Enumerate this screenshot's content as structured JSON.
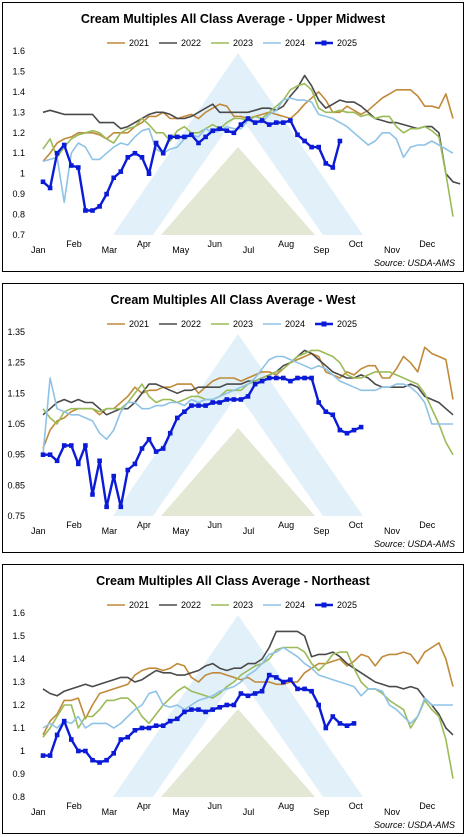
{
  "chart_data": [
    {
      "type": "line",
      "title": "Cream Multiples All Class Average - Upper Midwest",
      "source": "Source: USDA-AMS",
      "xlabels": [
        "Jan",
        "Feb",
        "Mar",
        "Apr",
        "May",
        "Jun",
        "Jul",
        "Aug",
        "Sep",
        "Oct",
        "Nov",
        "Dec"
      ],
      "ylim": [
        0.7,
        1.6
      ],
      "yticks": [
        "0.7",
        "0.8",
        "0.9",
        "1",
        "1.1",
        "1.2",
        "1.3",
        "1.4",
        "1.5",
        "1.6"
      ],
      "legend_position": "top",
      "series": [
        {
          "name": "2021",
          "color": "#c08a3a",
          "width": 1.6,
          "marker": false,
          "values": [
            1.06,
            1.1,
            1.15,
            1.17,
            1.18,
            1.2,
            1.2,
            1.2,
            1.19,
            1.17,
            1.2,
            1.2,
            1.2,
            1.23,
            1.25,
            1.28,
            1.28,
            1.3,
            1.27,
            1.27,
            1.28,
            1.29,
            1.27,
            1.3,
            1.32,
            1.34,
            1.33,
            1.28,
            1.28,
            1.27,
            1.28,
            1.29,
            1.3,
            1.29,
            1.28,
            1.27,
            1.3,
            1.34,
            1.37,
            1.4,
            1.36,
            1.3,
            1.3,
            1.33,
            1.31,
            1.29,
            1.31,
            1.34,
            1.37,
            1.39,
            1.41,
            1.41,
            1.41,
            1.38,
            1.33,
            1.33,
            1.32,
            1.39,
            1.27
          ]
        },
        {
          "name": "2022",
          "color": "#4a4a4a",
          "width": 1.6,
          "marker": false,
          "values": [
            1.3,
            1.31,
            1.3,
            1.29,
            1.29,
            1.29,
            1.29,
            1.29,
            1.25,
            1.25,
            1.25,
            1.22,
            1.23,
            1.25,
            1.27,
            1.29,
            1.3,
            1.3,
            1.29,
            1.27,
            1.27,
            1.28,
            1.3,
            1.32,
            1.34,
            1.3,
            1.3,
            1.3,
            1.3,
            1.3,
            1.31,
            1.32,
            1.32,
            1.31,
            1.33,
            1.38,
            1.42,
            1.48,
            1.43,
            1.36,
            1.32,
            1.34,
            1.36,
            1.35,
            1.35,
            1.33,
            1.3,
            1.27,
            1.26,
            1.25,
            1.25,
            1.24,
            1.23,
            1.22,
            1.23,
            1.23,
            1.2,
            1.0,
            0.96,
            0.95
          ]
        },
        {
          "name": "2023",
          "color": "#9bbb59",
          "width": 1.6,
          "marker": false,
          "values": [
            1.12,
            1.17,
            1.08,
            1.13,
            1.17,
            1.19,
            1.2,
            1.21,
            1.2,
            1.17,
            1.15,
            1.2,
            1.22,
            1.23,
            1.27,
            1.24,
            1.2,
            1.2,
            1.16,
            1.21,
            1.23,
            1.2,
            1.2,
            1.22,
            1.24,
            1.22,
            1.25,
            1.27,
            1.27,
            1.26,
            1.28,
            1.27,
            1.3,
            1.33,
            1.36,
            1.41,
            1.43,
            1.44,
            1.41,
            1.32,
            1.3,
            1.3,
            1.31,
            1.3,
            1.3,
            1.28,
            1.29,
            1.27,
            1.28,
            1.28,
            1.23,
            1.2,
            1.22,
            1.22,
            1.23,
            1.21,
            1.18,
            1.0,
            0.79
          ]
        },
        {
          "name": "2024",
          "color": "#8fc3e6",
          "width": 1.6,
          "marker": false,
          "values": [
            1.06,
            1.07,
            1.08,
            0.86,
            1.1,
            1.15,
            1.13,
            1.07,
            1.07,
            1.1,
            1.13,
            1.15,
            1.14,
            1.18,
            1.21,
            1.22,
            1.12,
            1.1,
            1.12,
            1.13,
            1.17,
            1.19,
            1.18,
            1.22,
            1.2,
            1.21,
            1.23,
            1.22,
            1.22,
            1.26,
            1.25,
            1.25,
            1.29,
            1.31,
            1.36,
            1.37,
            1.36,
            1.36,
            1.35,
            1.29,
            1.28,
            1.27,
            1.25,
            1.23,
            1.2,
            1.17,
            1.14,
            1.16,
            1.2,
            1.2,
            1.17,
            1.08,
            1.13,
            1.14,
            1.14,
            1.16,
            1.14,
            1.12,
            1.1
          ]
        },
        {
          "name": "2025",
          "color": "#0a1ad6",
          "width": 2.4,
          "marker": true,
          "values": [
            0.96,
            0.93,
            1.1,
            1.14,
            1.04,
            1.03,
            0.82,
            0.82,
            0.84,
            0.9,
            0.98,
            1.01,
            1.08,
            1.1,
            1.08,
            1.0,
            1.15,
            1.1,
            1.18,
            1.18,
            1.18,
            1.19,
            1.15,
            1.18,
            1.21,
            1.22,
            1.21,
            1.2,
            1.24,
            1.27,
            1.25,
            1.26,
            1.24,
            1.25,
            1.25,
            1.26,
            1.19,
            1.16,
            1.13,
            1.13,
            1.05,
            1.03,
            1.16
          ]
        }
      ]
    },
    {
      "type": "line",
      "title": "Cream Multiples All Class Average - West",
      "source": "Source: USDA-AMS",
      "xlabels": [
        "Jan",
        "Feb",
        "Mar",
        "Apr",
        "May",
        "Jun",
        "Jul",
        "Aug",
        "Sep",
        "Oct",
        "Nov",
        "Dec"
      ],
      "ylim": [
        0.75,
        1.35
      ],
      "yticks": [
        "0.75",
        "0.85",
        "0.95",
        "1.05",
        "1.15",
        "1.25",
        "1.35"
      ],
      "legend_position": "top",
      "series": [
        {
          "name": "2021",
          "color": "#c08a3a",
          "width": 1.6,
          "marker": false,
          "values": [
            0.97,
            1.03,
            1.06,
            1.07,
            1.09,
            1.1,
            1.1,
            1.1,
            1.08,
            1.1,
            1.1,
            1.12,
            1.14,
            1.17,
            1.15,
            1.16,
            1.16,
            1.17,
            1.17,
            1.18,
            1.18,
            1.18,
            1.15,
            1.17,
            1.19,
            1.2,
            1.2,
            1.2,
            1.19,
            1.2,
            1.21,
            1.22,
            1.22,
            1.21,
            1.23,
            1.25,
            1.26,
            1.27,
            1.28,
            1.27,
            1.22,
            1.21,
            1.2,
            1.22,
            1.21,
            1.23,
            1.24,
            1.24,
            1.2,
            1.2,
            1.23,
            1.27,
            1.25,
            1.22,
            1.3,
            1.28,
            1.27,
            1.26,
            1.13
          ]
        },
        {
          "name": "2022",
          "color": "#4a4a4a",
          "width": 1.6,
          "marker": false,
          "values": [
            1.08,
            1.1,
            1.12,
            1.13,
            1.12,
            1.13,
            1.12,
            1.12,
            1.1,
            1.08,
            1.09,
            1.1,
            1.1,
            1.12,
            1.15,
            1.18,
            1.18,
            1.17,
            1.16,
            1.15,
            1.16,
            1.16,
            1.17,
            1.17,
            1.17,
            1.17,
            1.18,
            1.18,
            1.18,
            1.19,
            1.19,
            1.2,
            1.21,
            1.22,
            1.24,
            1.25,
            1.27,
            1.29,
            1.28,
            1.26,
            1.24,
            1.22,
            1.21,
            1.2,
            1.2,
            1.21,
            1.2,
            1.18,
            1.17,
            1.17,
            1.17,
            1.17,
            1.18,
            1.17,
            1.14,
            1.13,
            1.12,
            1.1,
            1.08
          ]
        },
        {
          "name": "2023",
          "color": "#9bbb59",
          "width": 1.6,
          "marker": false,
          "values": [
            1.1,
            1.07,
            1.05,
            1.09,
            1.1,
            1.1,
            1.1,
            1.1,
            1.09,
            1.1,
            1.1,
            1.1,
            1.12,
            1.15,
            1.18,
            1.14,
            1.12,
            1.13,
            1.13,
            1.12,
            1.13,
            1.14,
            1.14,
            1.13,
            1.13,
            1.14,
            1.16,
            1.16,
            1.16,
            1.18,
            1.19,
            1.2,
            1.21,
            1.22,
            1.23,
            1.25,
            1.27,
            1.28,
            1.29,
            1.29,
            1.28,
            1.27,
            1.25,
            1.21,
            1.2,
            1.2,
            1.21,
            1.22,
            1.22,
            1.22,
            1.21,
            1.2,
            1.19,
            1.18,
            1.15,
            1.1,
            1.05,
            0.99,
            0.95
          ]
        },
        {
          "name": "2024",
          "color": "#8fc3e6",
          "width": 1.6,
          "marker": false,
          "values": [
            0.95,
            1.2,
            1.1,
            1.09,
            1.08,
            1.08,
            1.07,
            1.06,
            1.02,
            1.0,
            1.03,
            1.09,
            1.12,
            1.12,
            1.1,
            1.1,
            1.11,
            1.11,
            1.12,
            1.12,
            1.11,
            1.13,
            1.12,
            1.13,
            1.13,
            1.14,
            1.15,
            1.16,
            1.17,
            1.18,
            1.2,
            1.23,
            1.26,
            1.27,
            1.27,
            1.26,
            1.25,
            1.24,
            1.23,
            1.24,
            1.23,
            1.21,
            1.19,
            1.18,
            1.17,
            1.16,
            1.16,
            1.16,
            1.17,
            1.17,
            1.18,
            1.18,
            1.17,
            1.15,
            1.12,
            1.05,
            1.05,
            1.05,
            1.05
          ]
        },
        {
          "name": "2025",
          "color": "#0a1ad6",
          "width": 2.4,
          "marker": true,
          "values": [
            0.95,
            0.95,
            0.93,
            0.98,
            0.98,
            0.92,
            0.98,
            0.82,
            0.93,
            0.78,
            0.88,
            0.78,
            0.9,
            0.92,
            0.97,
            1.0,
            0.96,
            0.97,
            1.02,
            1.07,
            1.09,
            1.11,
            1.11,
            1.11,
            1.12,
            1.12,
            1.13,
            1.13,
            1.13,
            1.14,
            1.18,
            1.19,
            1.2,
            1.2,
            1.2,
            1.19,
            1.2,
            1.2,
            1.2,
            1.12,
            1.09,
            1.08,
            1.03,
            1.02,
            1.03,
            1.04
          ]
        }
      ]
    },
    {
      "type": "line",
      "title": "Cream Multiples All Class Average - Northeast",
      "source": "Source: USDA-AMS",
      "xlabels": [
        "Jan",
        "Feb",
        "Mar",
        "Apr",
        "May",
        "Jun",
        "Jul",
        "Aug",
        "Sep",
        "Oct",
        "Nov",
        "Dec"
      ],
      "ylim": [
        0.8,
        1.6
      ],
      "yticks": [
        "0.8",
        "0.9",
        "1",
        "1.1",
        "1.2",
        "1.3",
        "1.4",
        "1.5",
        "1.6"
      ],
      "legend_position": "top",
      "series": [
        {
          "name": "2021",
          "color": "#c08a3a",
          "width": 1.6,
          "marker": false,
          "values": [
            1.07,
            1.13,
            1.16,
            1.22,
            1.22,
            1.23,
            1.14,
            1.2,
            1.25,
            1.26,
            1.27,
            1.28,
            1.29,
            1.33,
            1.35,
            1.36,
            1.36,
            1.35,
            1.36,
            1.38,
            1.37,
            1.32,
            1.3,
            1.33,
            1.34,
            1.34,
            1.33,
            1.32,
            1.31,
            1.32,
            1.3,
            1.3,
            1.3,
            1.29,
            1.29,
            1.3,
            1.3,
            1.34,
            1.36,
            1.38,
            1.38,
            1.39,
            1.4,
            1.37,
            1.39,
            1.42,
            1.41,
            1.37,
            1.41,
            1.42,
            1.42,
            1.43,
            1.42,
            1.38,
            1.43,
            1.45,
            1.47,
            1.4,
            1.28
          ]
        },
        {
          "name": "2022",
          "color": "#4a4a4a",
          "width": 1.6,
          "marker": false,
          "values": [
            1.27,
            1.25,
            1.24,
            1.26,
            1.27,
            1.28,
            1.29,
            1.28,
            1.29,
            1.3,
            1.31,
            1.32,
            1.32,
            1.3,
            1.31,
            1.33,
            1.35,
            1.34,
            1.34,
            1.33,
            1.33,
            1.34,
            1.35,
            1.37,
            1.38,
            1.36,
            1.35,
            1.36,
            1.36,
            1.38,
            1.38,
            1.4,
            1.45,
            1.52,
            1.52,
            1.52,
            1.52,
            1.5,
            1.41,
            1.42,
            1.42,
            1.43,
            1.41,
            1.38,
            1.36,
            1.34,
            1.32,
            1.3,
            1.29,
            1.28,
            1.28,
            1.27,
            1.28,
            1.27,
            1.23,
            1.2,
            1.16,
            1.1,
            1.07
          ]
        },
        {
          "name": "2023",
          "color": "#9bbb59",
          "width": 1.6,
          "marker": false,
          "values": [
            1.06,
            1.1,
            1.15,
            1.2,
            1.2,
            1.1,
            1.15,
            1.15,
            1.18,
            1.22,
            1.22,
            1.23,
            1.23,
            1.2,
            1.15,
            1.12,
            1.16,
            1.2,
            1.23,
            1.26,
            1.28,
            1.26,
            1.25,
            1.24,
            1.23,
            1.25,
            1.28,
            1.3,
            1.33,
            1.35,
            1.37,
            1.38,
            1.4,
            1.44,
            1.45,
            1.45,
            1.45,
            1.43,
            1.38,
            1.35,
            1.38,
            1.42,
            1.43,
            1.43,
            1.36,
            1.3,
            1.27,
            1.27,
            1.25,
            1.22,
            1.2,
            1.18,
            1.1,
            1.15,
            1.22,
            1.18,
            1.15,
            1.05,
            0.88
          ]
        },
        {
          "name": "2024",
          "color": "#8fc3e6",
          "width": 1.6,
          "marker": false,
          "values": [
            1.1,
            1.12,
            1.1,
            1.13,
            1.12,
            1.15,
            1.1,
            1.12,
            1.12,
            1.12,
            1.1,
            1.12,
            1.15,
            1.18,
            1.2,
            1.25,
            1.26,
            1.2,
            1.19,
            1.2,
            1.18,
            1.2,
            1.22,
            1.23,
            1.24,
            1.26,
            1.27,
            1.28,
            1.3,
            1.33,
            1.35,
            1.38,
            1.42,
            1.43,
            1.45,
            1.43,
            1.41,
            1.38,
            1.36,
            1.33,
            1.32,
            1.31,
            1.3,
            1.29,
            1.28,
            1.24,
            1.27,
            1.27,
            1.26,
            1.2,
            1.18,
            1.15,
            1.12,
            1.15,
            1.23,
            1.2,
            1.2,
            1.2,
            1.2
          ]
        },
        {
          "name": "2025",
          "color": "#0a1ad6",
          "width": 2.4,
          "marker": true,
          "values": [
            0.98,
            0.98,
            1.07,
            1.13,
            1.05,
            1.0,
            1.0,
            0.96,
            0.95,
            0.96,
            0.99,
            1.05,
            1.06,
            1.09,
            1.1,
            1.1,
            1.11,
            1.11,
            1.13,
            1.14,
            1.17,
            1.18,
            1.18,
            1.17,
            1.18,
            1.19,
            1.2,
            1.2,
            1.25,
            1.24,
            1.25,
            1.26,
            1.33,
            1.32,
            1.3,
            1.31,
            1.27,
            1.27,
            1.26,
            1.2,
            1.1,
            1.15,
            1.12,
            1.11,
            1.12
          ]
        }
      ]
    }
  ]
}
